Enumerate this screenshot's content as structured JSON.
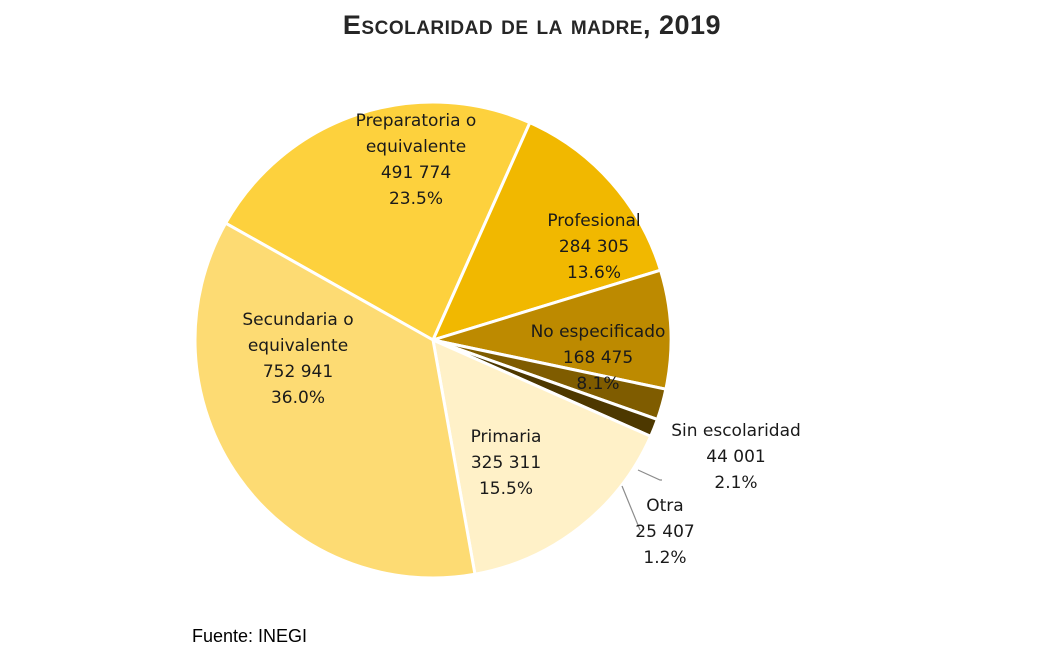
{
  "chart_data": {
    "type": "pie",
    "title": "Escolaridad de la madre, 2019",
    "source": "Fuente: INEGI",
    "slices": [
      {
        "label": [
          "Preparatoria o",
          "equivalente"
        ],
        "value": 491774,
        "value_text": "491 774",
        "percent": "23.5%",
        "color": "#FDD13D"
      },
      {
        "label": [
          "Profesional"
        ],
        "value": 284305,
        "value_text": "284 305",
        "percent": "13.6%",
        "color": "#F1B800"
      },
      {
        "label": [
          "No especificado"
        ],
        "value": 168475,
        "value_text": "168 475",
        "percent": "8.1%",
        "color": "#BD8A00"
      },
      {
        "label": [
          "Sin escolaridad"
        ],
        "value": 44001,
        "value_text": "44 001",
        "percent": "2.1%",
        "color": "#7F5C00"
      },
      {
        "label": [
          "Otra"
        ],
        "value": 25407,
        "value_text": "25 407",
        "percent": "1.2%",
        "color": "#4D3800"
      },
      {
        "label": [
          "Primaria"
        ],
        "value": 325311,
        "value_text": "325 311",
        "percent": "15.5%",
        "color": "#FFF1C8"
      },
      {
        "label": [
          "Secundaria  o",
          "equivalente"
        ],
        "value": 752941,
        "value_text": "752 941",
        "percent": "36.0%",
        "color": "#FDDB73"
      }
    ]
  }
}
